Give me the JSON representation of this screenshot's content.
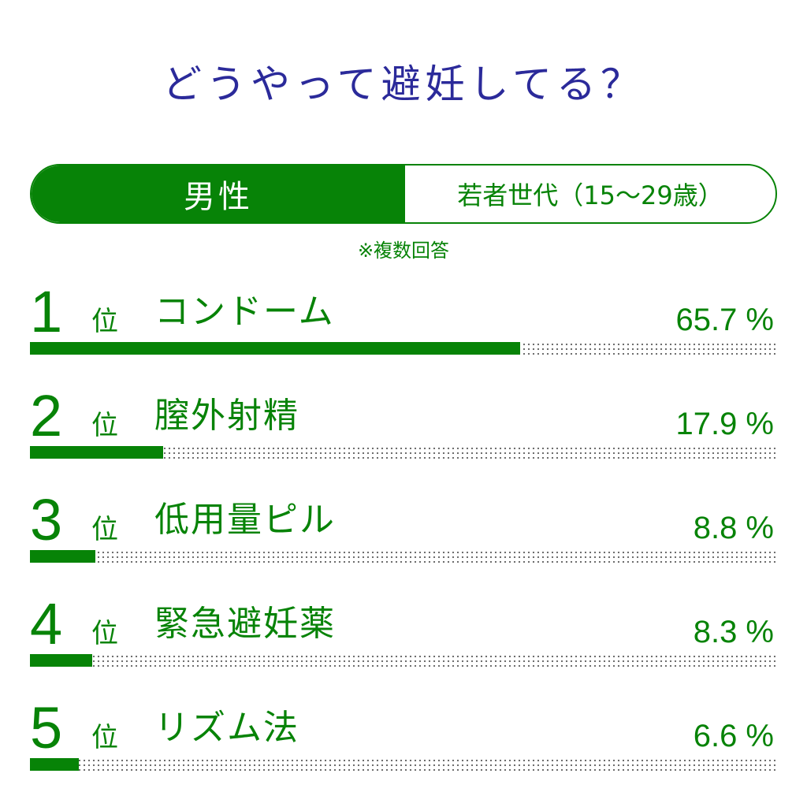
{
  "title": "どうやって避妊してる？",
  "segment": {
    "gender": "男性",
    "generation": "若者世代（15〜29歳）"
  },
  "note": "※複数回答",
  "colors": {
    "accent": "#078307",
    "title": "#2b2a9a",
    "track_dots": "#666666"
  },
  "chart_data": {
    "type": "bar",
    "orientation": "horizontal",
    "categories": [
      "コンドーム",
      "膣外射精",
      "低用量ピル",
      "緊急避妊薬",
      "リズム法"
    ],
    "values": [
      65.7,
      17.9,
      8.8,
      8.3,
      6.6
    ],
    "ranks": [
      "1",
      "2",
      "3",
      "4",
      "5"
    ],
    "rank_suffix": "位",
    "value_labels": [
      "65.7 %",
      "17.9 %",
      "8.8 %",
      "8.3 %",
      "6.6 %"
    ],
    "xlim": [
      0,
      100
    ],
    "title": "どうやって避妊してる？"
  }
}
